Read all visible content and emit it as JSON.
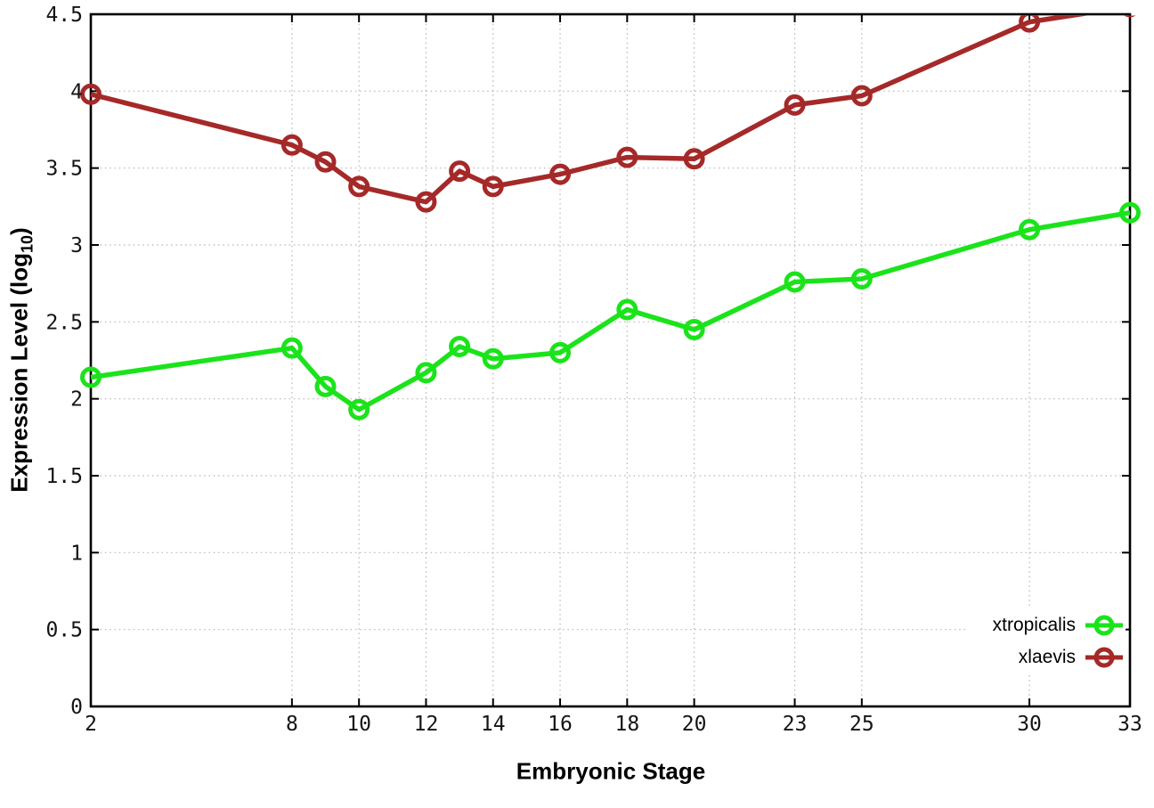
{
  "figure": {
    "background": "#ffffff"
  },
  "chart_data": {
    "type": "line",
    "title": "",
    "xlabel": "Embryonic Stage",
    "ylabel": "Expression Level (log10)",
    "ylabel_parts": {
      "prefix": "Expression Level (log",
      "sub": "10",
      "suffix": ")"
    },
    "x": [
      2,
      8,
      9,
      10,
      12,
      13,
      14,
      16,
      18,
      20,
      23,
      25,
      30,
      33
    ],
    "series": [
      {
        "name": "xtropicalis",
        "color": "#1be31b",
        "values": [
          2.14,
          2.33,
          2.08,
          1.93,
          2.17,
          2.34,
          2.26,
          2.3,
          2.58,
          2.45,
          2.76,
          2.78,
          3.1,
          3.21
        ]
      },
      {
        "name": "xlaevis",
        "color": "#a52929",
        "values": [
          3.98,
          3.65,
          3.54,
          3.38,
          3.28,
          3.48,
          3.38,
          3.46,
          3.57,
          3.56,
          3.91,
          3.97,
          4.45,
          4.55
        ]
      }
    ],
    "xlim": [
      2,
      33
    ],
    "ylim": [
      0,
      4.5
    ],
    "x_ticks": [
      2,
      8,
      10,
      12,
      14,
      16,
      18,
      20,
      23,
      25,
      30,
      33
    ],
    "y_ticks": [
      0,
      0.5,
      1,
      1.5,
      2,
      2.5,
      3,
      3.5,
      4,
      4.5
    ],
    "grid": true,
    "legend_position": "bottom-right",
    "colors": {
      "grid": "#b4b4b4",
      "axis": "#000000"
    }
  }
}
